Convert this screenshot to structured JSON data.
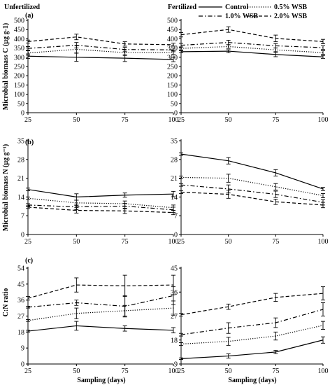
{
  "headers": {
    "left": "Unfertilized",
    "right": "Fertilized"
  },
  "panel_labels": {
    "a": "(a)",
    "b": "(b)",
    "c": "(c)"
  },
  "ylabels": {
    "a": "Microbial biomass C (µg g-1)",
    "b": "Microbial biomass N (µg g⁻¹)",
    "c": "C:N ratio"
  },
  "xlabel": "Sampling (days)",
  "legend": [
    {
      "name": "Control",
      "dash": "solid"
    },
    {
      "name": "0.5% WSB",
      "dash": "dotted"
    },
    {
      "name": "1.0% WSB",
      "dash": "dashdot"
    },
    {
      "name": "2.0% WSB",
      "dash": "dashed"
    }
  ],
  "chart_data": [
    {
      "id": "a-unfert",
      "type": "line",
      "panel": "a",
      "column": "Unfertilized",
      "x": [
        25,
        50,
        75,
        100
      ],
      "xlim": [
        25,
        100
      ],
      "ylim": [
        0,
        500
      ],
      "xticks": [
        25,
        50,
        75,
        100
      ],
      "yticks": [
        0,
        50,
        100,
        150,
        200,
        250,
        300,
        350,
        400,
        450,
        500
      ],
      "series": [
        {
          "name": "Control",
          "values": [
            306,
            300,
            295,
            288
          ],
          "err": [
            12,
            22,
            18,
            12
          ]
        },
        {
          "name": "0.5% WSB",
          "values": [
            323,
            343,
            325,
            325
          ],
          "err": [
            12,
            20,
            15,
            10
          ]
        },
        {
          "name": "1.0% WSB",
          "values": [
            348,
            365,
            342,
            340
          ],
          "err": [
            10,
            15,
            12,
            10
          ]
        },
        {
          "name": "2.0% WSB",
          "values": [
            385,
            410,
            372,
            368
          ],
          "err": [
            8,
            15,
            12,
            8
          ]
        }
      ]
    },
    {
      "id": "a-fert",
      "type": "line",
      "panel": "a",
      "column": "Fertilized",
      "x": [
        25,
        50,
        75,
        100
      ],
      "xlim": [
        25,
        100
      ],
      "ylim": [
        0,
        500
      ],
      "xticks": [
        25,
        50,
        75,
        100
      ],
      "yticks": [
        0,
        50,
        100,
        150,
        200,
        250,
        300,
        350,
        400,
        450,
        500
      ],
      "series": [
        {
          "name": "Control",
          "values": [
            330,
            333,
            315,
            302
          ],
          "err": [
            5,
            8,
            12,
            8
          ]
        },
        {
          "name": "0.5% WSB",
          "values": [
            348,
            358,
            340,
            325
          ],
          "err": [
            8,
            10,
            10,
            10
          ]
        },
        {
          "name": "1.0% WSB",
          "values": [
            365,
            380,
            362,
            352
          ],
          "err": [
            10,
            12,
            12,
            10
          ]
        },
        {
          "name": "2.0% WSB",
          "values": [
            422,
            450,
            402,
            385
          ],
          "err": [
            12,
            15,
            18,
            12
          ]
        }
      ]
    },
    {
      "id": "b-unfert",
      "type": "line",
      "panel": "b",
      "column": "Unfertilized",
      "x": [
        25,
        50,
        75,
        100
      ],
      "xlim": [
        25,
        100
      ],
      "ylim": [
        0,
        35
      ],
      "xticks": [
        25,
        50,
        75,
        100
      ],
      "yticks": [
        0,
        7,
        14,
        21,
        28,
        35
      ],
      "series": [
        {
          "name": "Control",
          "values": [
            16.8,
            14.0,
            14.7,
            15.1
          ],
          "err": [
            0.5,
            1.2,
            0.8,
            1.0
          ]
        },
        {
          "name": "0.5% WSB",
          "values": [
            13.5,
            11.8,
            11.5,
            10.0
          ],
          "err": [
            0.5,
            1.0,
            1.0,
            1.0
          ]
        },
        {
          "name": "1.0% WSB",
          "values": [
            11.0,
            10.3,
            10.6,
            9.2
          ],
          "err": [
            0.5,
            1.0,
            1.0,
            1.0
          ]
        },
        {
          "name": "2.0% WSB",
          "values": [
            10.2,
            9.0,
            8.8,
            8.2
          ],
          "err": [
            0.5,
            1.0,
            1.0,
            0.8
          ]
        }
      ]
    },
    {
      "id": "b-fert",
      "type": "line",
      "panel": "b",
      "column": "Fertilized",
      "x": [
        25,
        50,
        75,
        100
      ],
      "xlim": [
        25,
        100
      ],
      "ylim": [
        0,
        35
      ],
      "xticks": [
        25,
        50,
        75,
        100
      ],
      "yticks": [
        0,
        7,
        14,
        21,
        28,
        35
      ],
      "series": [
        {
          "name": "Control",
          "values": [
            30.0,
            27.5,
            23.0,
            17.0
          ],
          "err": [
            0.5,
            1.2,
            1.2,
            0.6
          ]
        },
        {
          "name": "0.5% WSB",
          "values": [
            21.3,
            21.0,
            17.8,
            14.5
          ],
          "err": [
            0.5,
            1.5,
            1.2,
            0.8
          ]
        },
        {
          "name": "1.0% WSB",
          "values": [
            18.5,
            17.0,
            15.0,
            12.0
          ],
          "err": [
            0.5,
            1.5,
            1.2,
            1.0
          ]
        },
        {
          "name": "2.0% WSB",
          "values": [
            15.8,
            15.0,
            12.2,
            11.0
          ],
          "err": [
            0.5,
            1.5,
            1.0,
            1.0
          ]
        }
      ]
    },
    {
      "id": "c-unfert",
      "type": "line",
      "panel": "c",
      "column": "Unfertilized",
      "x": [
        25,
        50,
        75,
        100
      ],
      "xlim": [
        25,
        100
      ],
      "ylim": [
        0,
        54
      ],
      "xticks": [
        25,
        50,
        75,
        100
      ],
      "yticks": [
        0,
        9,
        18,
        27,
        36,
        45,
        54
      ],
      "series": [
        {
          "name": "Control",
          "values": [
            18.5,
            21.5,
            20.0,
            19.0
          ],
          "err": [
            0.5,
            2.5,
            1.5,
            1.5
          ]
        },
        {
          "name": "0.5% WSB",
          "values": [
            24.5,
            28.5,
            30.0,
            31.5
          ],
          "err": [
            0.5,
            3.0,
            3.0,
            4.0
          ]
        },
        {
          "name": "1.0% WSB",
          "values": [
            32.0,
            34.5,
            32.5,
            38.5
          ],
          "err": [
            0.5,
            1.5,
            6.0,
            5.0
          ]
        },
        {
          "name": "2.0% WSB",
          "values": [
            37.0,
            44.5,
            44.0,
            44.5
          ],
          "err": [
            1.0,
            4.0,
            6.0,
            5.5
          ]
        }
      ]
    },
    {
      "id": "c-fert",
      "type": "line",
      "panel": "c",
      "column": "Fertilized",
      "x": [
        25,
        50,
        75,
        100
      ],
      "xlim": [
        25,
        100
      ],
      "ylim": [
        9,
        45
      ],
      "xticks": [
        25,
        50,
        75,
        100
      ],
      "yticks": [
        9,
        18,
        27,
        36,
        45
      ],
      "series": [
        {
          "name": "Control",
          "values": [
            11.0,
            12.0,
            13.5,
            18.0
          ],
          "err": [
            0.3,
            0.8,
            0.6,
            1.2
          ]
        },
        {
          "name": "0.5% WSB",
          "values": [
            16.5,
            17.5,
            19.5,
            23.5
          ],
          "err": [
            0.5,
            1.5,
            1.5,
            1.5
          ]
        },
        {
          "name": "1.0% WSB",
          "values": [
            20.0,
            22.5,
            24.5,
            29.5
          ],
          "err": [
            0.5,
            2.0,
            1.8,
            2.5
          ]
        },
        {
          "name": "2.0% WSB",
          "values": [
            27.5,
            30.5,
            34.0,
            35.5
          ],
          "err": [
            0.5,
            1.0,
            1.5,
            2.5
          ]
        }
      ]
    }
  ]
}
